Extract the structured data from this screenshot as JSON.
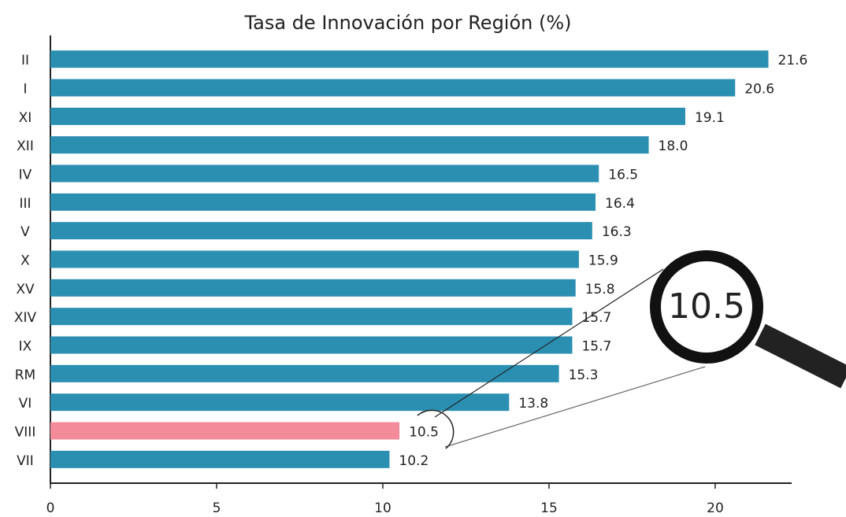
{
  "chart_data": {
    "type": "barh",
    "title": "Tasa de Innovación por Región (%)",
    "categories": [
      "II",
      "I",
      "XI",
      "XII",
      "IV",
      "III",
      "V",
      "X",
      "XV",
      "XIV",
      "IX",
      "RM",
      "VI",
      "VIII",
      "VII"
    ],
    "values": [
      21.6,
      20.6,
      19.1,
      18.0,
      16.5,
      16.4,
      16.3,
      15.9,
      15.8,
      15.7,
      15.7,
      15.3,
      13.8,
      10.5,
      10.2
    ],
    "value_labels": [
      "21.6",
      "20.6",
      "19.1",
      "18.0",
      "16.5",
      "16.4",
      "16.3",
      "15.9",
      "15.8",
      "15.7",
      "15.7",
      "15.3",
      "13.8",
      "10.5",
      "10.2"
    ],
    "colors": [
      "#2b8fb2",
      "#2b8fb2",
      "#2b8fb2",
      "#2b8fb2",
      "#2b8fb2",
      "#2b8fb2",
      "#2b8fb2",
      "#2b8fb2",
      "#2b8fb2",
      "#2b8fb2",
      "#2b8fb2",
      "#2b8fb2",
      "#2b8fb2",
      "#f38b9b",
      "#2b8fb2"
    ],
    "xlim": [
      0,
      22.3
    ],
    "xticks": [
      0,
      5,
      10,
      15,
      20
    ]
  }
}
